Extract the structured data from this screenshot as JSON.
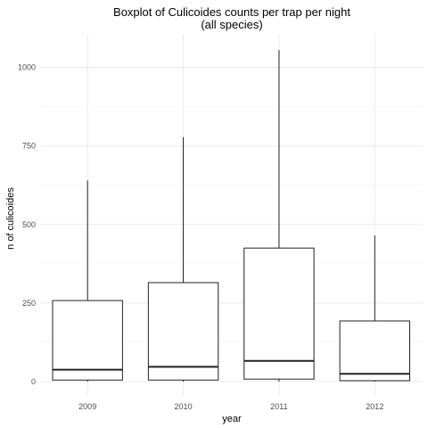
{
  "chart_data": {
    "type": "boxplot",
    "title": "Boxplot of Culicoides counts per trap per night",
    "subtitle": "(all species)",
    "xlabel": "year",
    "ylabel": "n of culicoides",
    "ylim": [
      0,
      1100
    ],
    "y_ticks": [
      0,
      250,
      500,
      750,
      1000
    ],
    "grid": true,
    "categories": [
      "2009",
      "2010",
      "2011",
      "2012"
    ],
    "boxes": [
      {
        "category": "2009",
        "min": 0,
        "q1": 5,
        "median": 38,
        "q3": 258,
        "max": 640
      },
      {
        "category": "2010",
        "min": 0,
        "q1": 5,
        "median": 47,
        "q3": 315,
        "max": 778
      },
      {
        "category": "2011",
        "min": 0,
        "q1": 8,
        "median": 66,
        "q3": 425,
        "max": 1055
      },
      {
        "category": "2012",
        "min": 0,
        "q1": 3,
        "median": 25,
        "q3": 193,
        "max": 465
      }
    ]
  }
}
